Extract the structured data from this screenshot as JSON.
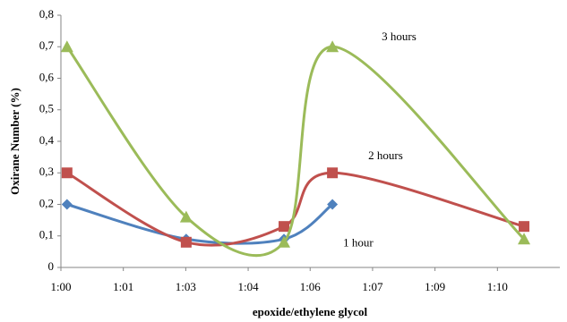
{
  "chart_data": {
    "type": "line",
    "smooth": true,
    "x_label": "epoxide/ethylene glycol",
    "y_label": "Oxirane Number (%)",
    "x": [
      60.14,
      62.87,
      65.11,
      66.22,
      70.61
    ],
    "series": [
      {
        "name": "1 hour",
        "color": "#4f81bd",
        "marker": "diamond",
        "values": [
          0.2,
          0.09,
          0.09,
          0.2,
          null
        ]
      },
      {
        "name": "2 hours",
        "color": "#c0504d",
        "marker": "square",
        "values": [
          0.3,
          0.08,
          0.13,
          0.3,
          0.13
        ]
      },
      {
        "name": "3 hours",
        "color": "#9bbb59",
        "marker": "triangle",
        "values": [
          0.7,
          0.16,
          0.08,
          0.7,
          0.09
        ]
      }
    ],
    "xlim": [
      60,
      71.43
    ],
    "xticks": [
      {
        "value": 60,
        "label": "1:00"
      },
      {
        "value": 61.43,
        "label": "1:01"
      },
      {
        "value": 62.86,
        "label": "1:03"
      },
      {
        "value": 64.29,
        "label": "1:04"
      },
      {
        "value": 65.71,
        "label": "1:06"
      },
      {
        "value": 67.14,
        "label": "1:07"
      },
      {
        "value": 68.57,
        "label": "1:09"
      },
      {
        "value": 70,
        "label": "1:10"
      }
    ],
    "ylim": [
      0,
      0.8
    ],
    "yticks": [
      0,
      {
        "value": 0.1,
        "label": "0,1"
      },
      {
        "value": 0.2,
        "label": "0,2"
      },
      {
        "value": 0.3,
        "label": "0,3"
      },
      {
        "value": 0.4,
        "label": "0,4"
      },
      {
        "value": 0.5,
        "label": "0,5"
      },
      {
        "value": 0.6,
        "label": "0,6"
      },
      {
        "value": 0.7,
        "label": "0,7"
      },
      {
        "value": 0.8,
        "label": "0,8"
      }
    ],
    "grid": false
  }
}
